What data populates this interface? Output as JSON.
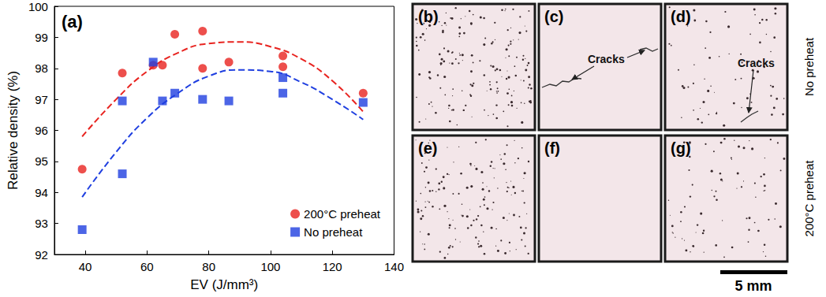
{
  "chart_data": {
    "type": "scatter",
    "panel_label": "(a)",
    "xlabel": "EV (J/mm³)",
    "ylabel": "Relative density (%)",
    "xlim": [
      30,
      140
    ],
    "xticks": [
      40,
      60,
      80,
      100,
      120,
      140
    ],
    "ylim": [
      92,
      100
    ],
    "yticks": [
      92,
      93,
      94,
      95,
      96,
      97,
      98,
      99,
      100
    ],
    "legend": "lower right",
    "series": [
      {
        "name": "200°C preheat",
        "color": "#e8231f",
        "marker": "circle",
        "x": [
          39,
          52,
          62,
          65,
          69,
          78,
          78,
          86.5,
          104,
          104,
          130
        ],
        "values": [
          94.75,
          97.85,
          98.1,
          98.1,
          99.1,
          99.2,
          98.0,
          98.2,
          98.4,
          98.05,
          97.2
        ]
      },
      {
        "name": "No preheat",
        "color": "#1f3fe0",
        "marker": "square",
        "x": [
          39,
          52,
          52,
          62,
          65,
          69,
          78,
          86.5,
          104,
          104,
          130
        ],
        "values": [
          92.8,
          96.95,
          94.6,
          98.2,
          96.95,
          97.2,
          97.0,
          96.95,
          97.7,
          97.2,
          96.9
        ]
      },
      {
        "type": "line",
        "line_style": "dashed",
        "color": "#e8231f",
        "x": [
          39,
          50,
          60,
          70,
          80,
          90,
          100,
          110,
          120,
          130
        ],
        "values": [
          95.8,
          97.0,
          97.9,
          98.5,
          98.8,
          98.85,
          98.7,
          98.3,
          97.6,
          96.6
        ]
      },
      {
        "type": "line",
        "line_style": "dashed",
        "color": "#1f3fe0",
        "x": [
          39,
          50,
          60,
          70,
          80,
          90,
          100,
          110,
          120,
          130
        ],
        "values": [
          93.85,
          95.3,
          96.4,
          97.2,
          97.75,
          97.95,
          97.9,
          97.55,
          97.0,
          96.35
        ]
      }
    ]
  },
  "micrographs": {
    "rows": [
      {
        "label": "No preheat",
        "panels": [
          {
            "label": "(b)"
          },
          {
            "label": "(c)",
            "annotation": "Cracks"
          },
          {
            "label": "(d)",
            "annotation": "Cracks"
          }
        ]
      },
      {
        "label": "200°C preheat",
        "panels": [
          {
            "label": "(e)"
          },
          {
            "label": "(f)"
          },
          {
            "label": "(g)"
          }
        ]
      }
    ],
    "scale_bar": "5 mm"
  }
}
